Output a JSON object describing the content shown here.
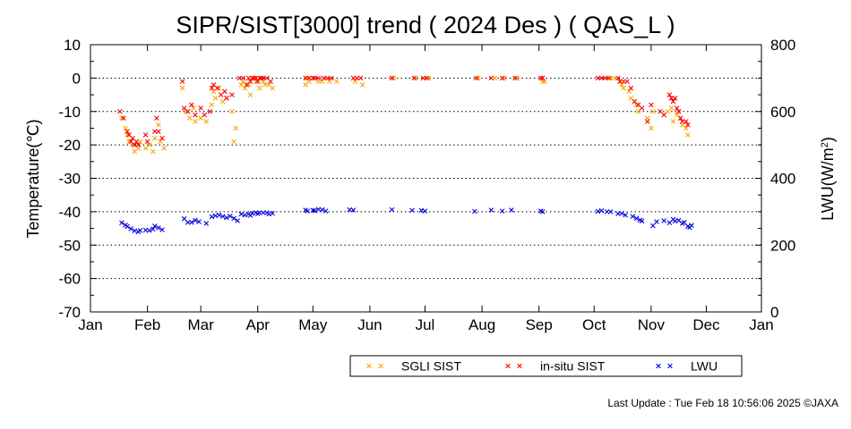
{
  "chart_data": {
    "type": "scatter",
    "title": "SIPR/SIST[3000] trend ( 2024 Des ) ( QAS_L )",
    "ylabel": "Temperature(℃)",
    "y2label_main": "LWU(W/m",
    "y2label_sup": "2",
    "y2label_end": ")",
    "ylim": [
      -70,
      10
    ],
    "y2lim": [
      0,
      800
    ],
    "yticks": [
      "10",
      "0",
      "-10",
      "-20",
      "-30",
      "-40",
      "-50",
      "-60",
      "-70"
    ],
    "y2ticks": [
      "800",
      "600",
      "400",
      "200",
      "0"
    ],
    "xlim": [
      0,
      365
    ],
    "xticks": [
      {
        "day": 0,
        "label": "Jan"
      },
      {
        "day": 31,
        "label": "Feb"
      },
      {
        "day": 60,
        "label": "Mar"
      },
      {
        "day": 91,
        "label": "Apr"
      },
      {
        "day": 121,
        "label": "May"
      },
      {
        "day": 152,
        "label": "Jun"
      },
      {
        "day": 182,
        "label": "Jul"
      },
      {
        "day": 213,
        "label": "Aug"
      },
      {
        "day": 244,
        "label": "Sep"
      },
      {
        "day": 274,
        "label": "Oct"
      },
      {
        "day": 305,
        "label": "Nov"
      },
      {
        "day": 335,
        "label": "Dec"
      },
      {
        "day": 365,
        "label": "Jan"
      }
    ],
    "grid": "horizontal dotted",
    "legend_position": "bottom",
    "series": [
      {
        "name": "SGLI SIST",
        "color": "#FFA500",
        "axis": "left",
        "points": [
          [
            17,
            -12
          ],
          [
            19,
            -15
          ],
          [
            20,
            -17
          ],
          [
            21,
            -19
          ],
          [
            23,
            -20
          ],
          [
            24,
            -22
          ],
          [
            26,
            -21
          ],
          [
            27,
            -19
          ],
          [
            30,
            -21
          ],
          [
            32,
            -20
          ],
          [
            34,
            -22
          ],
          [
            35,
            -18
          ],
          [
            37,
            -14
          ],
          [
            38,
            -19
          ],
          [
            40,
            -21
          ],
          [
            50,
            -3
          ],
          [
            52,
            -10
          ],
          [
            54,
            -12
          ],
          [
            56,
            -9
          ],
          [
            57,
            -13
          ],
          [
            60,
            -12
          ],
          [
            63,
            -13
          ],
          [
            66,
            -8
          ],
          [
            67,
            -4
          ],
          [
            68,
            -6
          ],
          [
            70,
            -3
          ],
          [
            72,
            -7
          ],
          [
            74,
            -6
          ],
          [
            77,
            -10
          ],
          [
            78,
            -19
          ],
          [
            79,
            -15
          ],
          [
            82,
            -2
          ],
          [
            83,
            -1
          ],
          [
            84,
            -3
          ],
          [
            86,
            -2
          ],
          [
            87,
            -5
          ],
          [
            88,
            0
          ],
          [
            90,
            -1
          ],
          [
            91,
            -1
          ],
          [
            92,
            -3
          ],
          [
            94,
            -1
          ],
          [
            95,
            -2
          ],
          [
            97,
            -2
          ],
          [
            99,
            -3
          ],
          [
            117,
            -2
          ],
          [
            118,
            0
          ],
          [
            119,
            -1
          ],
          [
            124,
            -1
          ],
          [
            126,
            -1
          ],
          [
            130,
            -1
          ],
          [
            134,
            -1
          ],
          [
            144,
            -1
          ],
          [
            148,
            -2
          ],
          [
            165,
            0
          ],
          [
            177,
            0
          ],
          [
            184,
            0
          ],
          [
            211,
            0
          ],
          [
            220,
            0
          ],
          [
            225,
            0
          ],
          [
            232,
            0
          ],
          [
            246,
            -1
          ],
          [
            247,
            -1
          ],
          [
            278,
            0
          ],
          [
            280,
            0
          ],
          [
            283,
            0
          ],
          [
            285,
            0
          ],
          [
            288,
            -1
          ],
          [
            289,
            -2
          ],
          [
            290,
            -3
          ],
          [
            293,
            -4
          ],
          [
            294,
            -6
          ],
          [
            297,
            -8
          ],
          [
            298,
            -10
          ],
          [
            303,
            -12
          ],
          [
            305,
            -15
          ],
          [
            306,
            -10
          ],
          [
            312,
            -11
          ],
          [
            314,
            -10
          ],
          [
            316,
            -9
          ],
          [
            317,
            -13
          ],
          [
            319,
            -11
          ],
          [
            321,
            -12
          ],
          [
            322,
            -14
          ],
          [
            324,
            -15
          ],
          [
            325,
            -17
          ]
        ]
      },
      {
        "name": "in-situ SIST",
        "color": "#FF0000",
        "axis": "left",
        "points": [
          [
            16,
            -10
          ],
          [
            18,
            -12
          ],
          [
            20,
            -16
          ],
          [
            21,
            -17
          ],
          [
            22,
            -19
          ],
          [
            23,
            -18
          ],
          [
            24,
            -20
          ],
          [
            25,
            -19
          ],
          [
            26,
            -20
          ],
          [
            30,
            -17
          ],
          [
            31,
            -19
          ],
          [
            35,
            -16
          ],
          [
            36,
            -12
          ],
          [
            37,
            -16
          ],
          [
            39,
            -18
          ],
          [
            50,
            -1
          ],
          [
            51,
            -9
          ],
          [
            53,
            -10
          ],
          [
            55,
            -8
          ],
          [
            57,
            -11
          ],
          [
            60,
            -9
          ],
          [
            62,
            -11
          ],
          [
            65,
            -10
          ],
          [
            66,
            -3
          ],
          [
            67,
            -2
          ],
          [
            69,
            -3
          ],
          [
            71,
            -5
          ],
          [
            73,
            -4
          ],
          [
            74,
            -6
          ],
          [
            77,
            -5
          ],
          [
            81,
            0
          ],
          [
            83,
            0
          ],
          [
            85,
            -2
          ],
          [
            86,
            0
          ],
          [
            87,
            -1
          ],
          [
            88,
            0
          ],
          [
            89,
            0
          ],
          [
            90,
            0
          ],
          [
            91,
            -1
          ],
          [
            92,
            0
          ],
          [
            93,
            0
          ],
          [
            94,
            0
          ],
          [
            96,
            0
          ],
          [
            98,
            -1
          ],
          [
            117,
            0
          ],
          [
            119,
            0
          ],
          [
            121,
            0
          ],
          [
            122,
            0
          ],
          [
            124,
            0
          ],
          [
            127,
            0
          ],
          [
            129,
            0
          ],
          [
            131,
            0
          ],
          [
            143,
            0
          ],
          [
            145,
            0
          ],
          [
            147,
            0
          ],
          [
            164,
            0
          ],
          [
            176,
            0
          ],
          [
            181,
            0
          ],
          [
            183,
            0
          ],
          [
            210,
            0
          ],
          [
            218,
            0
          ],
          [
            224,
            0
          ],
          [
            231,
            0
          ],
          [
            245,
            0
          ],
          [
            246,
            0
          ],
          [
            276,
            0
          ],
          [
            278,
            0
          ],
          [
            280,
            0
          ],
          [
            282,
            0
          ],
          [
            287,
            0
          ],
          [
            288,
            -1
          ],
          [
            290,
            -1
          ],
          [
            292,
            -1
          ],
          [
            294,
            -3
          ],
          [
            296,
            -7
          ],
          [
            298,
            -8
          ],
          [
            300,
            -9
          ],
          [
            303,
            -13
          ],
          [
            305,
            -8
          ],
          [
            310,
            -10
          ],
          [
            312,
            -11
          ],
          [
            315,
            -5
          ],
          [
            316,
            -6
          ],
          [
            317,
            -7
          ],
          [
            318,
            -6
          ],
          [
            319,
            -9
          ],
          [
            320,
            -10
          ],
          [
            321,
            -12
          ],
          [
            322,
            -13
          ],
          [
            324,
            -13
          ],
          [
            325,
            -14
          ]
        ]
      },
      {
        "name": "LWU",
        "color": "#0000DD",
        "axis": "right",
        "points": [
          [
            17,
            267
          ],
          [
            19,
            260
          ],
          [
            20,
            256
          ],
          [
            22,
            249
          ],
          [
            24,
            243
          ],
          [
            26,
            240
          ],
          [
            27,
            244
          ],
          [
            30,
            245
          ],
          [
            32,
            244
          ],
          [
            34,
            248
          ],
          [
            35,
            257
          ],
          [
            37,
            252
          ],
          [
            39,
            246
          ],
          [
            51,
            279
          ],
          [
            53,
            268
          ],
          [
            55,
            268
          ],
          [
            57,
            274
          ],
          [
            59,
            270
          ],
          [
            63,
            265
          ],
          [
            66,
            285
          ],
          [
            68,
            288
          ],
          [
            70,
            290
          ],
          [
            72,
            286
          ],
          [
            74,
            282
          ],
          [
            76,
            287
          ],
          [
            78,
            280
          ],
          [
            80,
            273
          ],
          [
            82,
            293
          ],
          [
            84,
            290
          ],
          [
            86,
            293
          ],
          [
            87,
            289
          ],
          [
            88,
            295
          ],
          [
            90,
            297
          ],
          [
            91,
            294
          ],
          [
            92,
            297
          ],
          [
            94,
            297
          ],
          [
            96,
            297
          ],
          [
            97,
            293
          ],
          [
            99,
            295
          ],
          [
            117,
            305
          ],
          [
            118,
            302
          ],
          [
            121,
            304
          ],
          [
            122,
            303
          ],
          [
            124,
            307
          ],
          [
            126,
            306
          ],
          [
            128,
            302
          ],
          [
            141,
            306
          ],
          [
            143,
            305
          ],
          [
            164,
            306
          ],
          [
            175,
            304
          ],
          [
            180,
            304
          ],
          [
            182,
            302
          ],
          [
            209,
            301
          ],
          [
            218,
            305
          ],
          [
            224,
            302
          ],
          [
            229,
            305
          ],
          [
            245,
            302
          ],
          [
            246,
            300
          ],
          [
            276,
            301
          ],
          [
            278,
            303
          ],
          [
            281,
            300
          ],
          [
            283,
            300
          ],
          [
            287,
            294
          ],
          [
            289,
            295
          ],
          [
            291,
            290
          ],
          [
            295,
            286
          ],
          [
            297,
            280
          ],
          [
            299,
            275
          ],
          [
            300,
            272
          ],
          [
            306,
            258
          ],
          [
            308,
            270
          ],
          [
            312,
            273
          ],
          [
            315,
            267
          ],
          [
            317,
            277
          ],
          [
            318,
            272
          ],
          [
            320,
            274
          ],
          [
            322,
            265
          ],
          [
            323,
            268
          ],
          [
            325,
            256
          ],
          [
            326,
            253
          ],
          [
            327,
            259
          ]
        ]
      }
    ]
  },
  "footer": {
    "last_update": "Last Update : Tue Feb 18 10:56:06 2025  ©JAXA"
  }
}
